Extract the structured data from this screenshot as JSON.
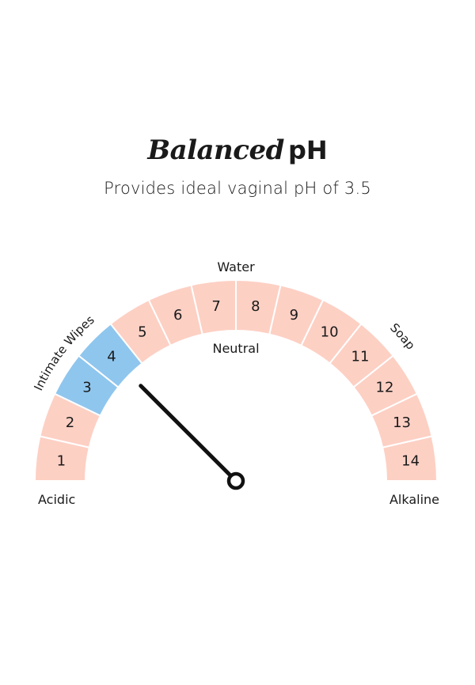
{
  "title": {
    "script": "Balanced",
    "ph": "pH"
  },
  "subtitle": "Provides ideal vaginal pH of 3.5",
  "gauge": {
    "segments": [
      "1",
      "2",
      "3",
      "4",
      "5",
      "6",
      "7",
      "8",
      "9",
      "10",
      "11",
      "12",
      "13",
      "14"
    ],
    "highlighted": [
      3,
      4
    ],
    "needle_value": 3.5,
    "colors": {
      "segment": "#fdd0c4",
      "highlight": "#8fc6ee",
      "needle": "#111111"
    },
    "labels": {
      "left_end": "Acidic",
      "right_end": "Alkaline",
      "top": "Water",
      "center": "Neutral",
      "arc_left": "Intimate Wipes",
      "arc_right": "Soap"
    }
  }
}
